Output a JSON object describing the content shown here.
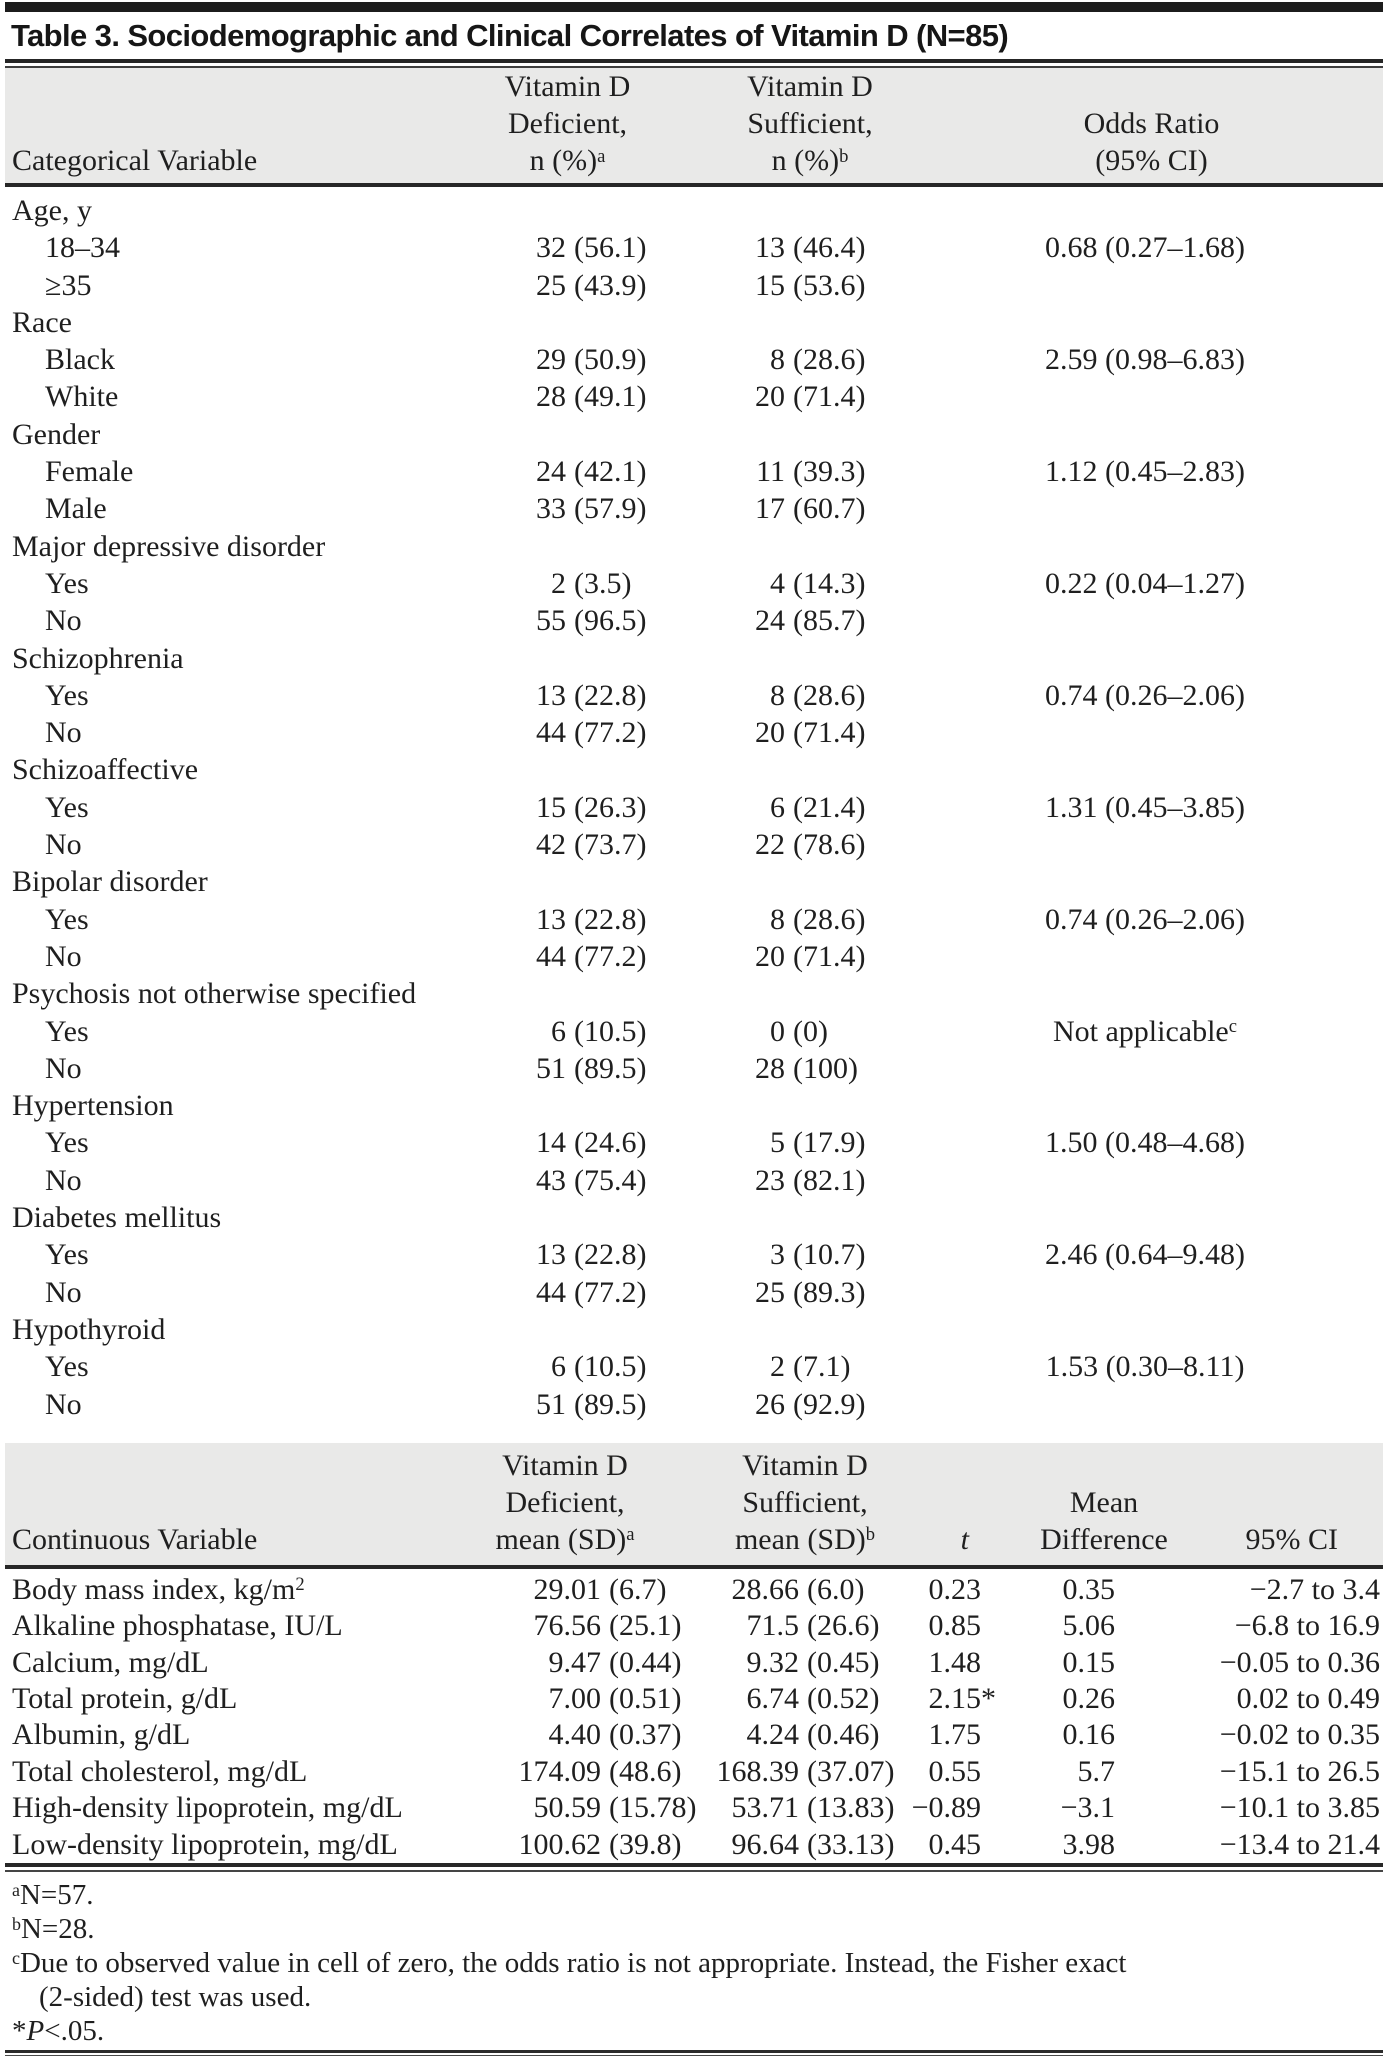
{
  "table": {
    "title": "Table 3. Sociodemographic and Clinical Correlates of Vitamin D (N=85)"
  },
  "colors": {
    "band_gray": "#e9e9e8",
    "rule_dark": "#272727",
    "text": "#1f1f1f"
  },
  "categorical": {
    "header": {
      "col1": "Categorical Variable",
      "def1": "Vitamin D",
      "def2": "Deficient,",
      "def3": "n (%)",
      "def3sup": "a",
      "suf1": "Vitamin D",
      "suf2": "Sufficient,",
      "suf3": "n (%)",
      "suf3sup": "b",
      "or1": "Odds Ratio",
      "or2": "(95% CI)"
    },
    "rows": [
      {
        "label": "Age, y",
        "group": true
      },
      {
        "label": "18–34",
        "def": {
          "n": "32",
          "pct": "(56.1)"
        },
        "suf": {
          "n": "13",
          "pct": "(46.4)"
        },
        "or": {
          "text": "0.68 (0.27–1.68)"
        }
      },
      {
        "label": "≥35",
        "def": {
          "n": "25",
          "pct": "(43.9)"
        },
        "suf": {
          "n": "15",
          "pct": "(53.6)"
        }
      },
      {
        "label": "Race",
        "group": true
      },
      {
        "label": "Black",
        "def": {
          "n": "29",
          "pct": "(50.9)"
        },
        "suf": {
          "n": "8",
          "pct": "(28.6)"
        },
        "or": {
          "text": "2.59 (0.98–6.83)"
        }
      },
      {
        "label": "White",
        "def": {
          "n": "28",
          "pct": "(49.1)"
        },
        "suf": {
          "n": "20",
          "pct": "(71.4)"
        }
      },
      {
        "label": "Gender",
        "group": true
      },
      {
        "label": "Female",
        "def": {
          "n": "24",
          "pct": "(42.1)"
        },
        "suf": {
          "n": "11",
          "pct": "(39.3)"
        },
        "or": {
          "text": "1.12 (0.45–2.83)"
        }
      },
      {
        "label": "Male",
        "def": {
          "n": "33",
          "pct": "(57.9)"
        },
        "suf": {
          "n": "17",
          "pct": "(60.7)"
        }
      },
      {
        "label": "Major depressive disorder",
        "group": true
      },
      {
        "label": "Yes",
        "def": {
          "n": "2",
          "pct": "(3.5)"
        },
        "suf": {
          "n": "4",
          "pct": "(14.3)"
        },
        "or": {
          "text": "0.22 (0.04–1.27)"
        }
      },
      {
        "label": "No",
        "def": {
          "n": "55",
          "pct": "(96.5)"
        },
        "suf": {
          "n": "24",
          "pct": "(85.7)"
        }
      },
      {
        "label": "Schizophrenia",
        "group": true
      },
      {
        "label": "Yes",
        "def": {
          "n": "13",
          "pct": "(22.8)"
        },
        "suf": {
          "n": "8",
          "pct": "(28.6)"
        },
        "or": {
          "text": "0.74 (0.26–2.06)"
        }
      },
      {
        "label": "No",
        "def": {
          "n": "44",
          "pct": "(77.2)"
        },
        "suf": {
          "n": "20",
          "pct": "(71.4)"
        }
      },
      {
        "label": "Schizoaffective",
        "group": true
      },
      {
        "label": "Yes",
        "def": {
          "n": "15",
          "pct": "(26.3)"
        },
        "suf": {
          "n": "6",
          "pct": "(21.4)"
        },
        "or": {
          "text": "1.31 (0.45–3.85)"
        }
      },
      {
        "label": "No",
        "def": {
          "n": "42",
          "pct": "(73.7)"
        },
        "suf": {
          "n": "22",
          "pct": "(78.6)"
        }
      },
      {
        "label": "Bipolar disorder",
        "group": true
      },
      {
        "label": "Yes",
        "def": {
          "n": "13",
          "pct": "(22.8)"
        },
        "suf": {
          "n": "8",
          "pct": "(28.6)"
        },
        "or": {
          "text": "0.74 (0.26–2.06)"
        }
      },
      {
        "label": "No",
        "def": {
          "n": "44",
          "pct": "(77.2)"
        },
        "suf": {
          "n": "20",
          "pct": "(71.4)"
        }
      },
      {
        "label": "Psychosis not otherwise specified",
        "group": true
      },
      {
        "label": "Yes",
        "def": {
          "n": "6",
          "pct": "(10.5)"
        },
        "suf": {
          "n": "0",
          "pct": "(0)"
        },
        "or": {
          "text": "Not applicable",
          "sup": "c"
        }
      },
      {
        "label": "No",
        "def": {
          "n": "51",
          "pct": "(89.5)"
        },
        "suf": {
          "n": "28",
          "pct": "(100)"
        }
      },
      {
        "label": "Hypertension",
        "group": true
      },
      {
        "label": "Yes",
        "def": {
          "n": "14",
          "pct": "(24.6)"
        },
        "suf": {
          "n": "5",
          "pct": "(17.9)"
        },
        "or": {
          "text": "1.50 (0.48–4.68)"
        }
      },
      {
        "label": "No",
        "def": {
          "n": "43",
          "pct": "(75.4)"
        },
        "suf": {
          "n": "23",
          "pct": "(82.1)"
        }
      },
      {
        "label": "Diabetes mellitus",
        "group": true
      },
      {
        "label": "Yes",
        "def": {
          "n": "13",
          "pct": "(22.8)"
        },
        "suf": {
          "n": "3",
          "pct": "(10.7)"
        },
        "or": {
          "text": "2.46 (0.64–9.48)"
        }
      },
      {
        "label": "No",
        "def": {
          "n": "44",
          "pct": "(77.2)"
        },
        "suf": {
          "n": "25",
          "pct": "(89.3)"
        }
      },
      {
        "label": "Hypothyroid",
        "group": true
      },
      {
        "label": "Yes",
        "def": {
          "n": "6",
          "pct": "(10.5)"
        },
        "suf": {
          "n": "2",
          "pct": "(7.1)"
        },
        "or": {
          "text": "1.53 (0.30–8.11)"
        }
      },
      {
        "label": "No",
        "def": {
          "n": "51",
          "pct": "(89.5)"
        },
        "suf": {
          "n": "26",
          "pct": "(92.9)"
        }
      }
    ]
  },
  "continuous": {
    "header": {
      "col1": "Continuous Variable",
      "def1": "Vitamin D",
      "def2": "Deficient,",
      "def3": "mean (SD)",
      "def3sup": "a",
      "suf1": "Vitamin D",
      "suf2": "Sufficient,",
      "suf3": "mean (SD)",
      "suf3sup": "b",
      "t": "t",
      "md1": "Mean",
      "md2": "Difference",
      "ci": "95% CI"
    },
    "rows": [
      {
        "label": {
          "text": "Body mass index, kg/m",
          "sup": "2"
        },
        "def": {
          "mean": "29.01",
          "sd": "(6.7)"
        },
        "suf": {
          "mean": "28.66",
          "sd": "(6.0)"
        },
        "t": "0.23",
        "diff": "0.35",
        "ci": "−2.7 to 3.4"
      },
      {
        "label": {
          "text": "Alkaline phosphatase, IU/L"
        },
        "def": {
          "mean": "76.56",
          "sd": "(25.1)"
        },
        "suf": {
          "mean": "71.5",
          "sd": "(26.6)"
        },
        "t": "0.85",
        "diff": "5.06",
        "ci": "−6.8 to 16.9"
      },
      {
        "label": {
          "text": "Calcium, mg/dL"
        },
        "def": {
          "mean": "9.47",
          "sd": "(0.44)"
        },
        "suf": {
          "mean": "9.32",
          "sd": "(0.45)"
        },
        "t": "1.48",
        "diff": "0.15",
        "ci": "−0.05 to 0.36"
      },
      {
        "label": {
          "text": "Total protein, g/dL"
        },
        "def": {
          "mean": "7.00",
          "sd": "(0.51)"
        },
        "suf": {
          "mean": "6.74",
          "sd": "(0.52)"
        },
        "t": "2.15",
        "t_star": "*",
        "diff": "0.26",
        "ci": "0.02 to 0.49"
      },
      {
        "label": {
          "text": "Albumin, g/dL"
        },
        "def": {
          "mean": "4.40",
          "sd": "(0.37)"
        },
        "suf": {
          "mean": "4.24",
          "sd": "(0.46)"
        },
        "t": "1.75",
        "diff": "0.16",
        "ci": "−0.02 to 0.35"
      },
      {
        "label": {
          "text": "Total cholesterol, mg/dL"
        },
        "def": {
          "mean": "174.09",
          "sd": "(48.6)"
        },
        "suf": {
          "mean": "168.39",
          "sd": "(37.07)"
        },
        "t": "0.55",
        "diff": "5.7",
        "ci": "−15.1 to 26.5"
      },
      {
        "label": {
          "text": "High-density lipoprotein, mg/dL"
        },
        "def": {
          "mean": "50.59",
          "sd": "(15.78)"
        },
        "suf": {
          "mean": "53.71",
          "sd": "(13.83)"
        },
        "t": "−0.89",
        "diff": "−3.1",
        "ci": "−10.1 to 3.85"
      },
      {
        "label": {
          "text": "Low-density lipoprotein, mg/dL"
        },
        "def": {
          "mean": "100.62",
          "sd": "(39.8)"
        },
        "suf": {
          "mean": "96.64",
          "sd": "(33.13)"
        },
        "t": "0.45",
        "diff": "3.98",
        "ci": "−13.4 to 21.4"
      }
    ]
  },
  "footnotes": {
    "notes": [
      {
        "sup": "a",
        "text": "N=57."
      },
      {
        "sup": "b",
        "text": "N=28."
      },
      {
        "sup": "c",
        "text": "Due to observed value in cell of zero, the odds ratio is not appropriate. Instead, the Fisher exact",
        "cont": "(2-sided) test was used."
      }
    ],
    "p_note": {
      "star": "*",
      "p": "P",
      "text": "<.05."
    }
  }
}
